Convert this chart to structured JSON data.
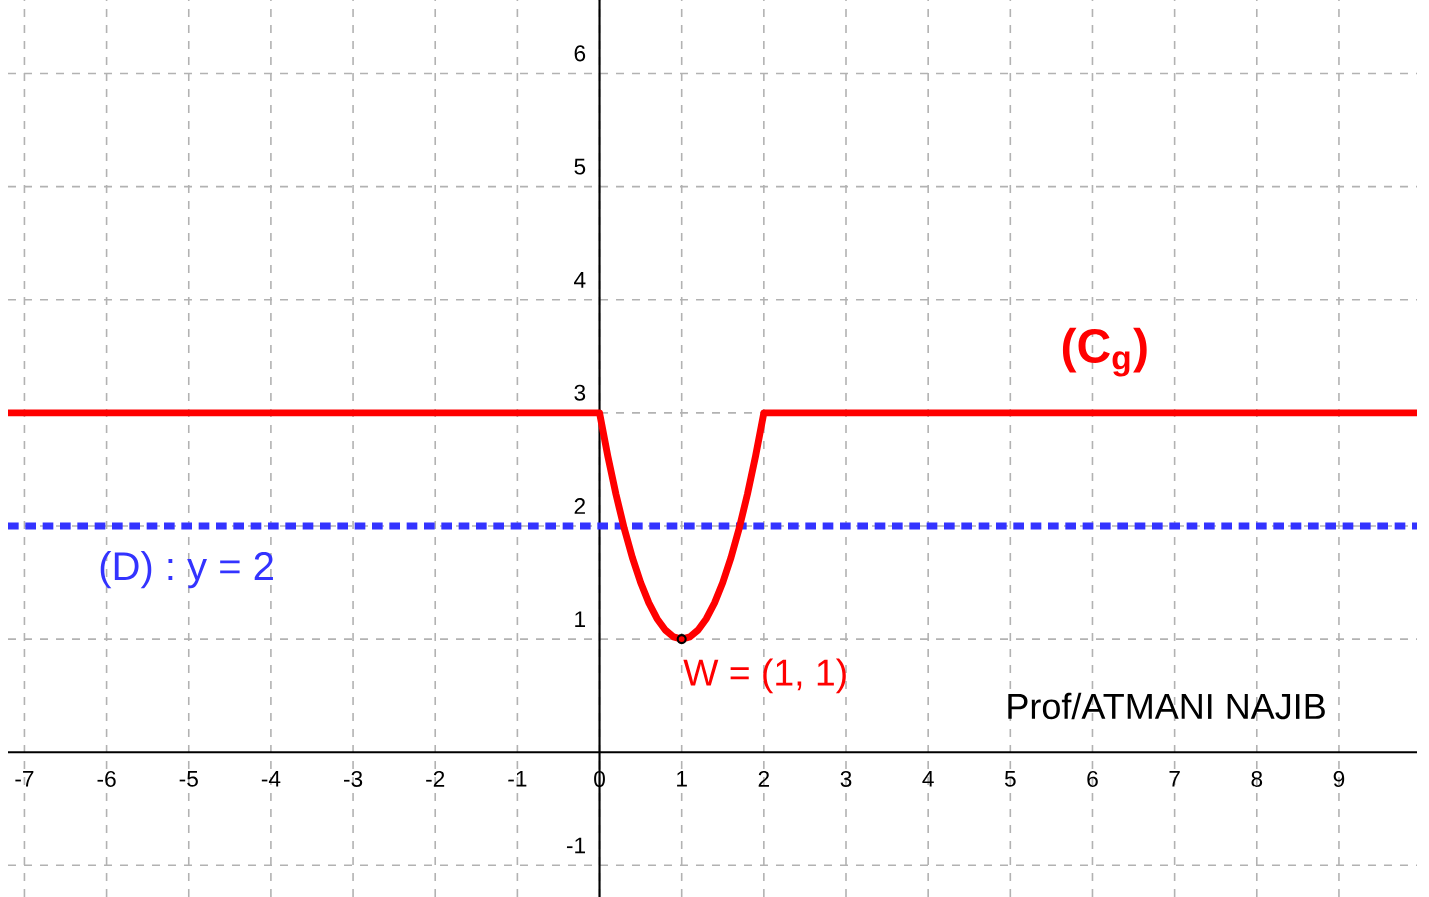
{
  "chart_data": {
    "type": "line",
    "xlim": [
      -7.2,
      9.95
    ],
    "ylim": [
      -1.28,
      6.65
    ],
    "xticks": [
      -7,
      -6,
      -5,
      -4,
      -3,
      -2,
      -1,
      0,
      1,
      2,
      3,
      4,
      5,
      6,
      7,
      8,
      9
    ],
    "yticks": [
      -1,
      1,
      2,
      3,
      4,
      5,
      6
    ],
    "grid": true,
    "series": [
      {
        "name": "(C$_{g}$)",
        "color": "#ff0000",
        "marker": "none",
        "x": [
          -7.2,
          0,
          0.1,
          0.2,
          0.3,
          0.4,
          0.5,
          0.6,
          0.7,
          0.8,
          0.9,
          1,
          1.1,
          1.2,
          1.3,
          1.4,
          1.5,
          1.6,
          1.7,
          1.8,
          1.9,
          2,
          9.95
        ],
        "values": [
          3,
          3,
          2.62,
          2.28,
          1.98,
          1.72,
          1.5,
          1.32,
          1.18,
          1.08,
          1.02,
          1,
          1.02,
          1.08,
          1.18,
          1.32,
          1.5,
          1.72,
          1.98,
          2.28,
          2.62,
          3,
          3
        ]
      },
      {
        "type": "scatter",
        "color": "#ff0000",
        "marker": "circle",
        "x": [
          1
        ],
        "values": [
          1
        ]
      }
    ],
    "ref_lines": [
      {
        "axis": "y",
        "value": 2,
        "label": "(D) : y = 2",
        "color": "#3333ff",
        "line_style": "dotted"
      }
    ],
    "annotations": [
      {
        "text": "W = (1, 1)",
        "x": 1,
        "y": 1
      },
      "Prof/ATMANI NAJIB"
    ]
  }
}
